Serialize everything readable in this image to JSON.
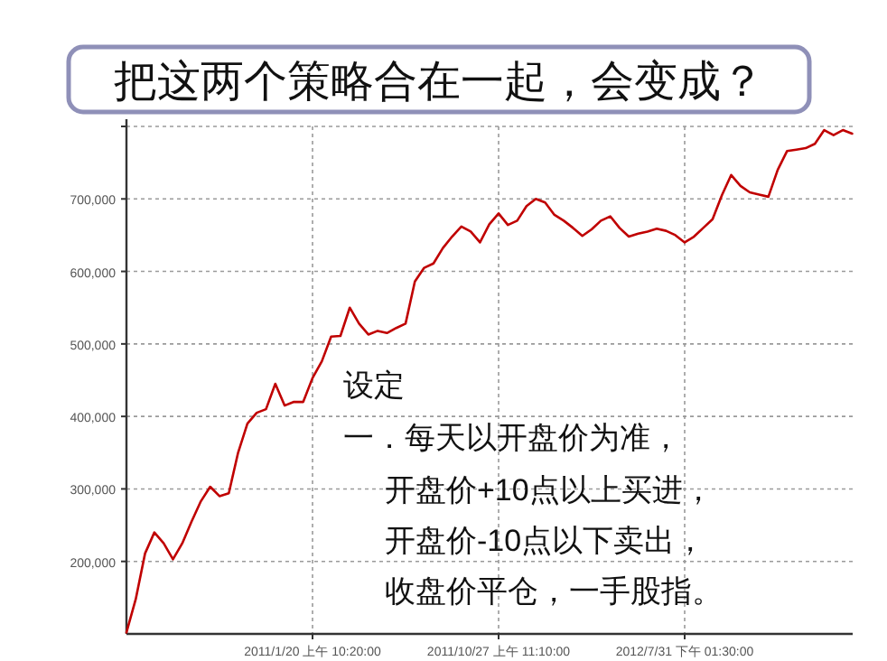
{
  "chart_data": {
    "type": "line",
    "title": "把这两个策略合在一起，会变成？",
    "categories": [
      null,
      null,
      null,
      null,
      null,
      null,
      null,
      null,
      null,
      null,
      null,
      null,
      null,
      null,
      null,
      null,
      null,
      null,
      null,
      null,
      "2011/1/20 上午 10:20:00",
      null,
      null,
      null,
      null,
      null,
      null,
      null,
      null,
      null,
      null,
      null,
      null,
      null,
      null,
      null,
      null,
      null,
      null,
      null,
      "2011/10/27 上午 11:10:00",
      null,
      null,
      null,
      null,
      null,
      null,
      null,
      null,
      null,
      null,
      null,
      null,
      null,
      null,
      null,
      null,
      null,
      null,
      null,
      "2012/7/31 下午 01:30:00",
      null,
      null,
      null,
      null,
      null,
      null,
      null,
      null,
      null,
      null,
      null,
      null,
      null,
      null,
      null,
      null,
      null,
      null
    ],
    "series": [
      {
        "color": "#c00000",
        "values": [
          102000,
          148000,
          211000,
          240000,
          225000,
          203000,
          225000,
          255000,
          283000,
          303000,
          290000,
          294000,
          350000,
          390000,
          405000,
          410000,
          445000,
          415000,
          420000,
          420000,
          453000,
          476000,
          510000,
          511000,
          550000,
          528000,
          513000,
          518000,
          515000,
          522000,
          528000,
          586000,
          605000,
          611000,
          632000,
          648000,
          662000,
          655000,
          640000,
          665000,
          680000,
          664000,
          670000,
          690000,
          700000,
          695000,
          678000,
          670000,
          660000,
          649000,
          658000,
          670000,
          676000,
          660000,
          648000,
          652000,
          655000,
          659000,
          656000,
          650000,
          640000,
          648000,
          660000,
          672000,
          705000,
          733000,
          718000,
          709000,
          706000,
          703000,
          740000,
          766000,
          768000,
          770000,
          776000,
          795000,
          788000,
          795000,
          790000
        ]
      }
    ],
    "ylim": [
      100000,
      800000
    ],
    "yticks": [
      {
        "value": 200000,
        "label": "200,000"
      },
      {
        "value": 300000,
        "label": "300,000"
      },
      {
        "value": 400000,
        "label": "400,000"
      },
      {
        "value": 500000,
        "label": "500,000"
      },
      {
        "value": 600000,
        "label": "600,000"
      },
      {
        "value": 700000,
        "label": "700,000"
      },
      {
        "value": 800000,
        "label": null
      }
    ],
    "grid": true,
    "line_style": "solid",
    "marker": "none",
    "annotations": [
      "设定",
      "一．每天以开盘价为准，",
      "开盘价+10点以上买进，",
      "开盘价-10点以下卖出，",
      "收盘价平仓，一手股指。"
    ]
  }
}
